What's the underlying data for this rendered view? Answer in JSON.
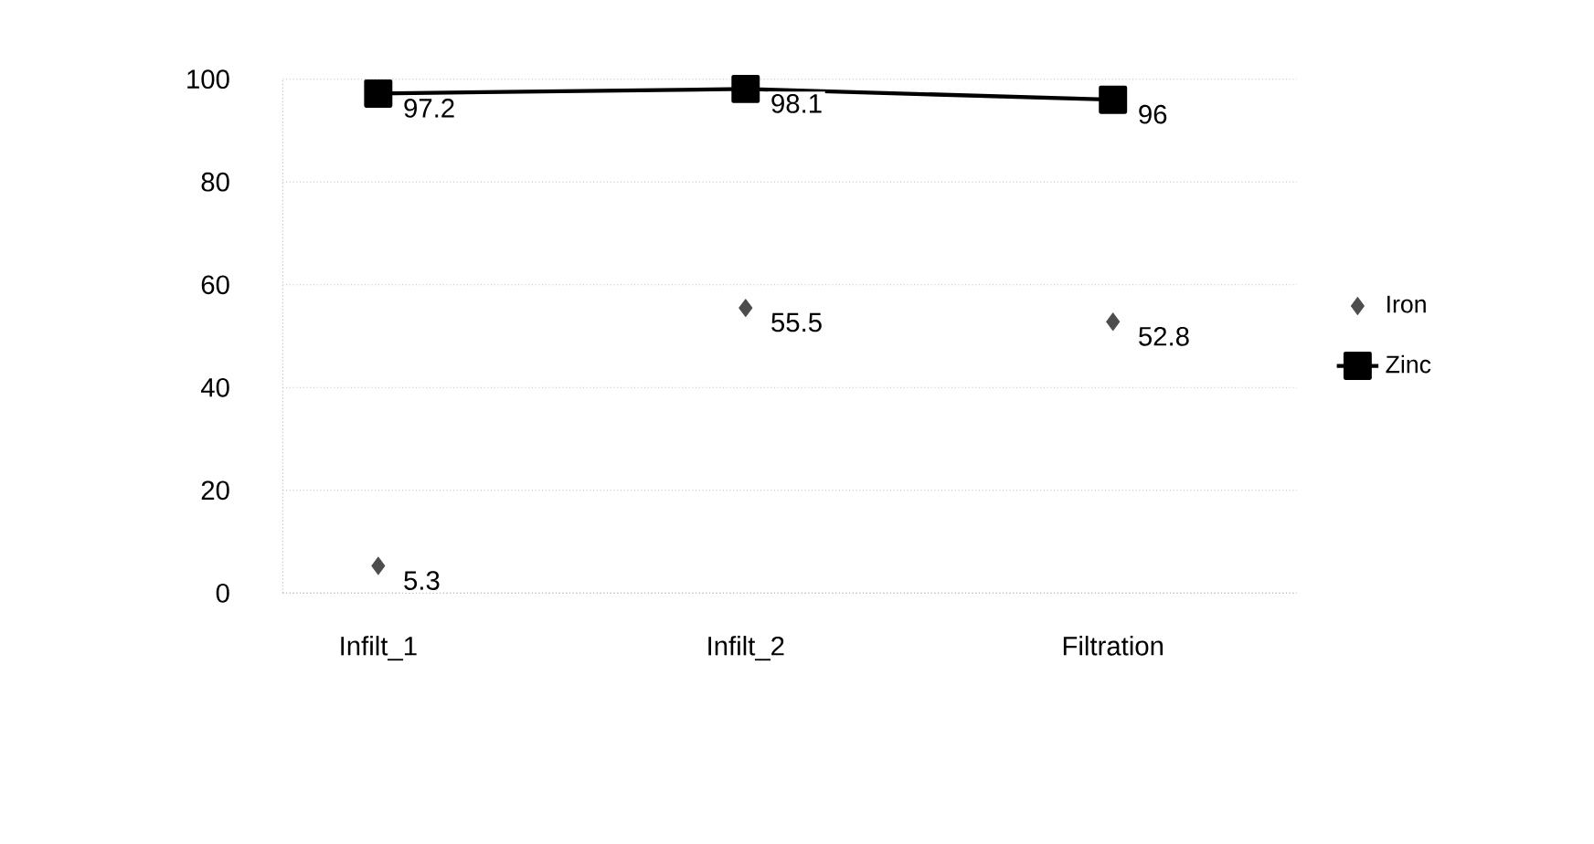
{
  "chart_data": {
    "type": "line",
    "categories": [
      "Infilt_1",
      "Infilt_2",
      "Filtration"
    ],
    "series": [
      {
        "name": "Iron",
        "type": "scatter",
        "color": "#4d4d4d",
        "marker": "diamond",
        "values": [
          5.3,
          55.5,
          52.8
        ]
      },
      {
        "name": "Zinc",
        "color": "#000000",
        "marker": "square",
        "values": [
          97.2,
          98.1,
          96
        ]
      }
    ],
    "ylim": [
      0,
      100
    ],
    "yticks": [
      0,
      20,
      40,
      60,
      80,
      100
    ],
    "grid": "y",
    "legend": "right",
    "data_labels": true
  }
}
